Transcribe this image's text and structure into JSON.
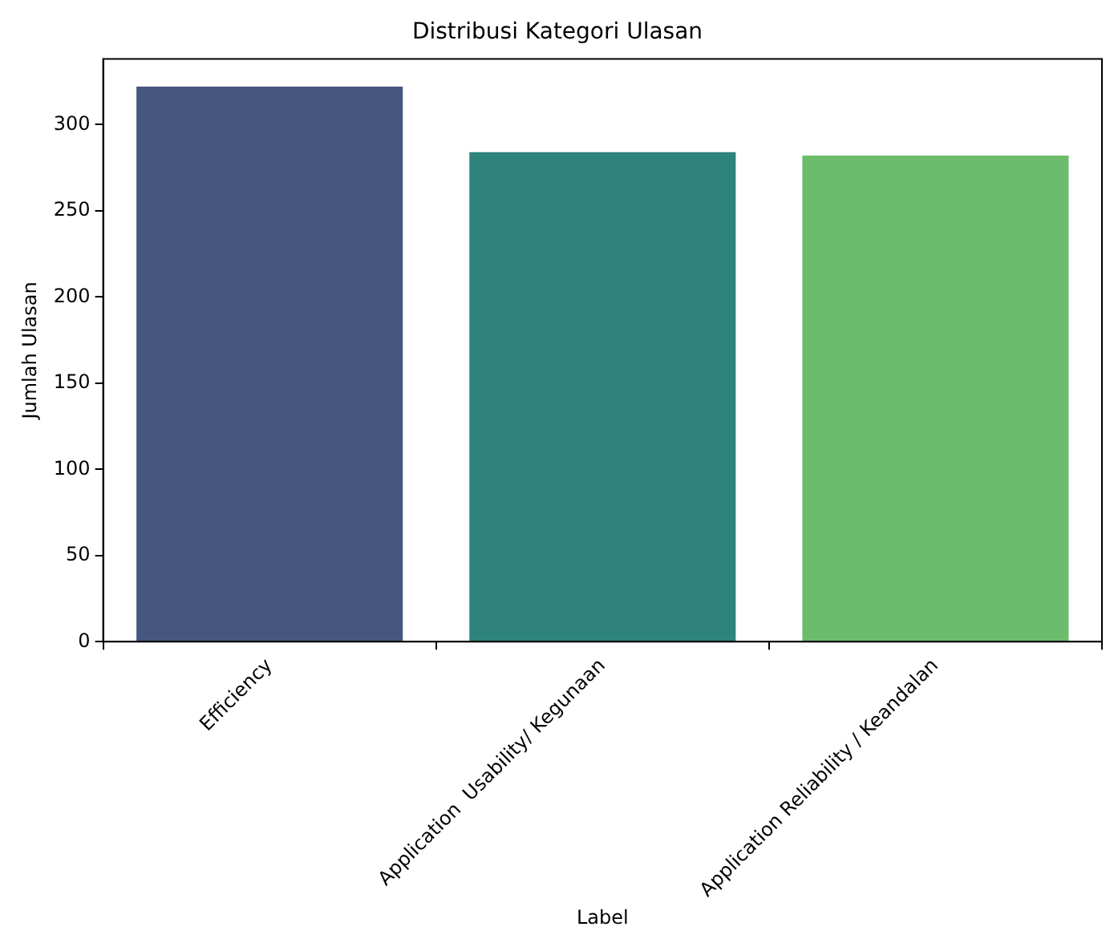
{
  "chart_data": {
    "type": "bar",
    "title": "Distribusi Kategori Ulasan",
    "xlabel": "Label",
    "ylabel": "Jumlah Ulasan",
    "categories": [
      "Efficiency",
      "Application  Usability/ Kegunaan",
      "Application Reliability / Keandalan"
    ],
    "values": [
      322,
      284,
      282
    ],
    "colors": [
      "#46577f",
      "#2e847c",
      "#6bbd6d"
    ],
    "ylim": [
      0,
      338
    ],
    "yticks": [
      0,
      50,
      100,
      150,
      200,
      250,
      300
    ],
    "grid": false,
    "legend": false
  }
}
